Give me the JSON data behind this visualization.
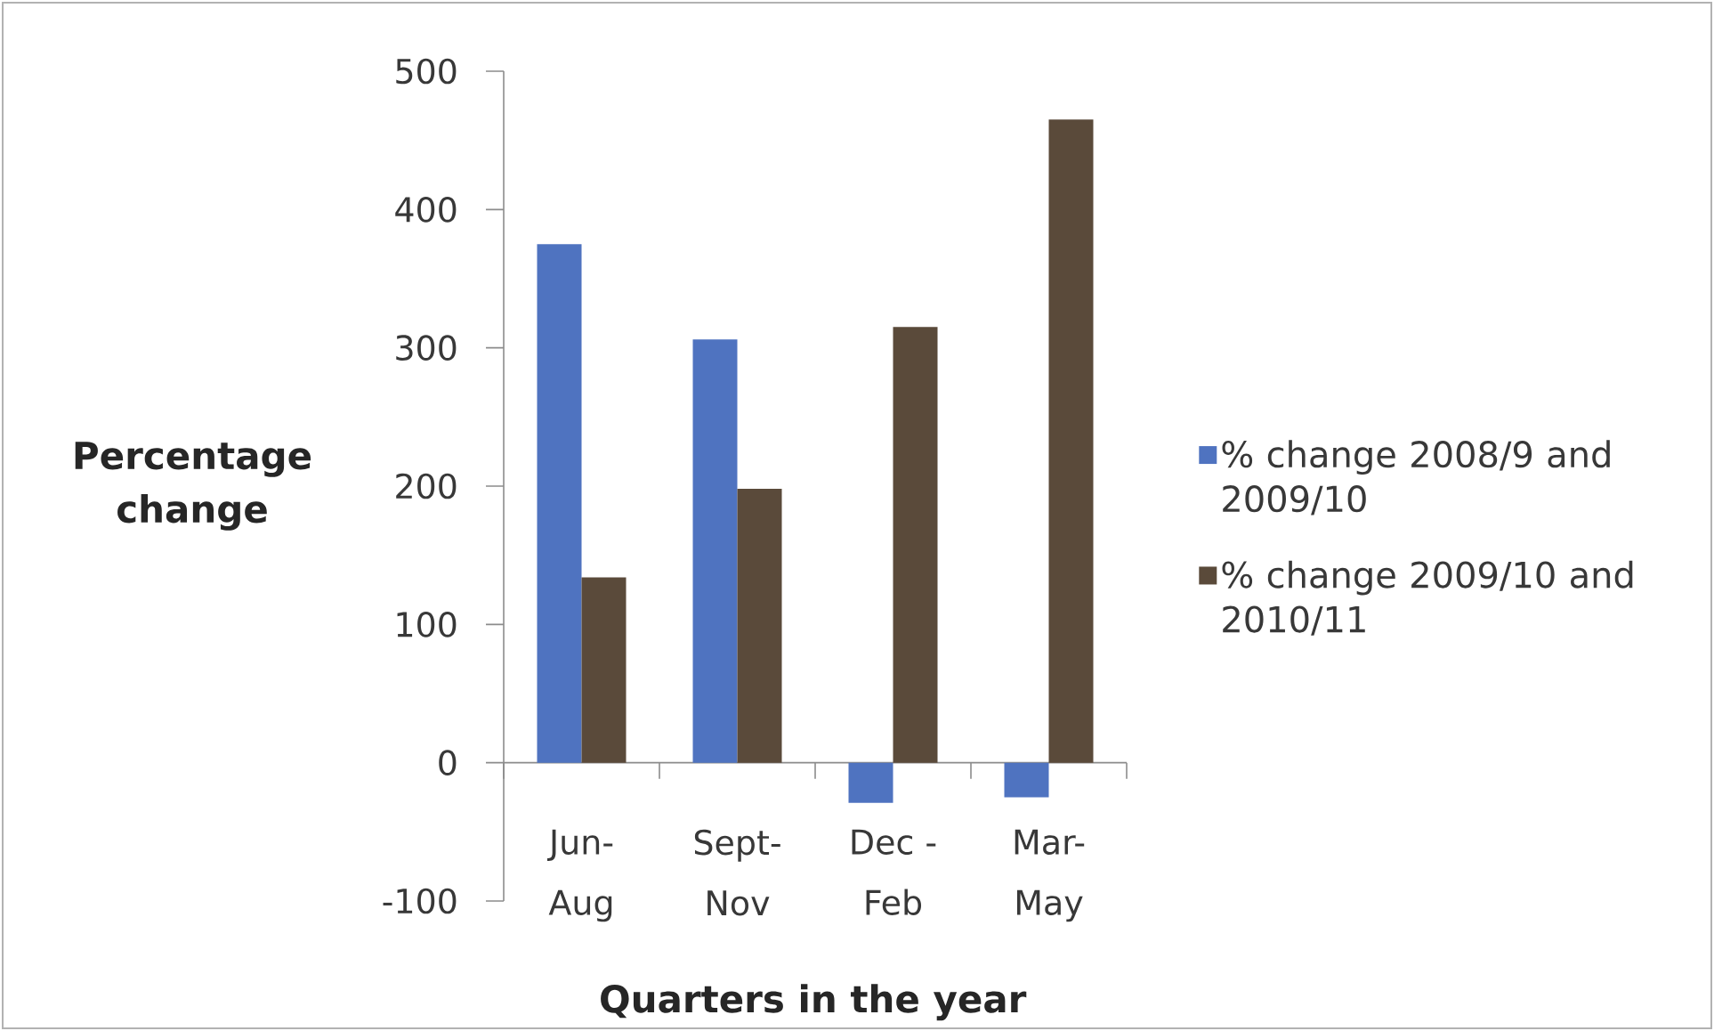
{
  "chart_data": {
    "type": "bar",
    "categories": [
      "Jun-Aug",
      "Sept-Nov",
      "Dec - Feb",
      "Mar-May"
    ],
    "xlabel": "Quarters in the year",
    "ylabel": "Percentage change",
    "series": [
      {
        "name": "% change 2008/9 and 2009/10",
        "color": "#4f73c0",
        "values": [
          375,
          306,
          -29,
          -25
        ]
      },
      {
        "name": "% change 2009/10 and 2010/11",
        "color": "#5a4a3a",
        "values": [
          134,
          198,
          315,
          465
        ]
      }
    ],
    "ylim": [
      -100,
      500
    ],
    "yticks": [
      -100,
      0,
      100,
      200,
      300,
      400,
      500
    ],
    "legend": "right"
  }
}
